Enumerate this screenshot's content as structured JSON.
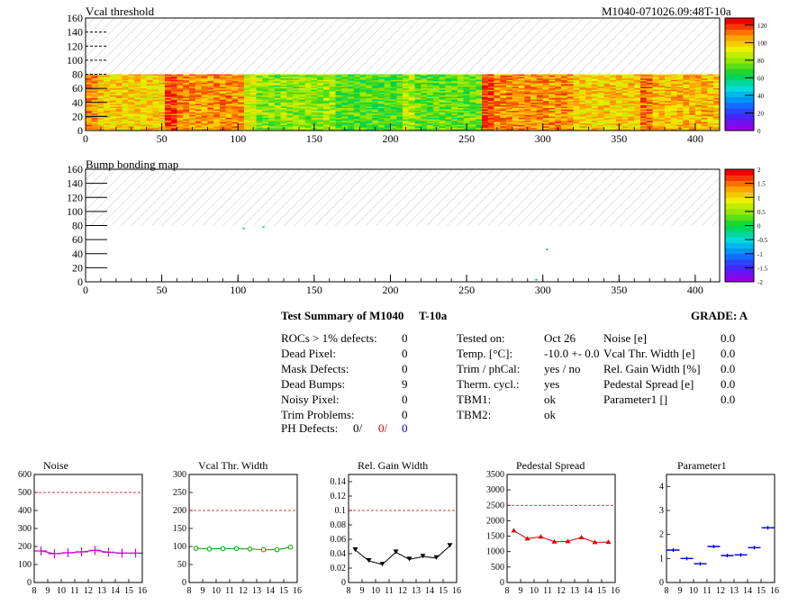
{
  "header": {
    "title": "Vcal threshold",
    "module_id": "M1040-071026.09:48T-10a"
  },
  "chart_data": [
    {
      "type": "heatmap",
      "title": "Vcal threshold",
      "xlim": [
        0,
        416
      ],
      "ylim": [
        0,
        160
      ],
      "x_ticks": [
        "0",
        "50",
        "100",
        "150",
        "200",
        "250",
        "300",
        "350",
        "400"
      ],
      "y_ticks": [
        "0",
        "20",
        "40",
        "60",
        "80",
        "100",
        "120",
        "140",
        "160"
      ],
      "data_rows": [
        0,
        80
      ],
      "hatched_rows": [
        80,
        160
      ],
      "z_ticks": [
        "0",
        "20",
        "40",
        "60",
        "80",
        "100",
        "120"
      ],
      "zlim": [
        0,
        128
      ],
      "roc_columns": [
        {
          "x": [
            0,
            52
          ],
          "level": 100
        },
        {
          "x": [
            52,
            104
          ],
          "level": 110
        },
        {
          "x": [
            104,
            156
          ],
          "level": 80
        },
        {
          "x": [
            156,
            208
          ],
          "level": 72
        },
        {
          "x": [
            208,
            260
          ],
          "level": 74
        },
        {
          "x": [
            260,
            312
          ],
          "level": 110
        },
        {
          "x": [
            312,
            364
          ],
          "level": 100
        },
        {
          "x": [
            364,
            416
          ],
          "level": 104
        }
      ]
    },
    {
      "type": "heatmap",
      "title": "Bump bonding map",
      "xlim": [
        0,
        416
      ],
      "ylim": [
        0,
        160
      ],
      "x_ticks": [
        "0",
        "50",
        "100",
        "150",
        "200",
        "250",
        "300",
        "350",
        "400"
      ],
      "y_ticks": [
        "0",
        "20",
        "40",
        "60",
        "80",
        "100",
        "120",
        "140",
        "160"
      ],
      "hatched_rows": [
        80,
        160
      ],
      "z_ticks": [
        "-2",
        "-1.5",
        "-1",
        "-0.5",
        "0",
        "0.5",
        "1",
        "1.5",
        "2"
      ],
      "zlim": [
        -2,
        2
      ],
      "points": [
        [
          103,
          75
        ],
        [
          116,
          77
        ],
        [
          295,
          2
        ],
        [
          302,
          45
        ]
      ]
    },
    {
      "type": "line",
      "title": "Noise",
      "color": "#d000d0",
      "xlim": [
        8,
        16
      ],
      "ylim": [
        0,
        600
      ],
      "x_ticks": [
        "8",
        "9",
        "10",
        "11",
        "12",
        "13",
        "14",
        "15",
        "16"
      ],
      "y_ticks": [
        "0",
        "100",
        "200",
        "300",
        "400",
        "500",
        "600"
      ],
      "ref_line": 500,
      "marker": "cross",
      "x": [
        8.5,
        9.5,
        10.5,
        11.5,
        12.5,
        13.5,
        14.5,
        15.5
      ],
      "values": [
        175,
        160,
        165,
        170,
        178,
        168,
        163,
        163
      ]
    },
    {
      "type": "line",
      "title": "Vcal Thr. Width",
      "color": "#00a000",
      "xlim": [
        8,
        16
      ],
      "ylim": [
        0,
        300
      ],
      "x_ticks": [
        "8",
        "9",
        "10",
        "11",
        "12",
        "13",
        "14",
        "15",
        "16"
      ],
      "y_ticks": [
        "0",
        "50",
        "100",
        "150",
        "200",
        "250",
        "300"
      ],
      "ref_line": 200,
      "marker": "circle",
      "x": [
        8.5,
        9.5,
        10.5,
        11.5,
        12.5,
        13.5,
        14.5,
        15.5
      ],
      "values": [
        95,
        93,
        94,
        94,
        93,
        91,
        91,
        98
      ]
    },
    {
      "type": "line",
      "title": "Rel. Gain Width",
      "color": "#000000",
      "xlim": [
        8,
        16
      ],
      "ylim": [
        0,
        0.15
      ],
      "x_ticks": [
        "8",
        "9",
        "10",
        "11",
        "12",
        "13",
        "14",
        "15",
        "16"
      ],
      "y_ticks": [
        "0",
        "0.02",
        "0.04",
        "0.06",
        "0.08",
        "0.1",
        "0.12",
        "0.14"
      ],
      "ref_line": 0.1,
      "marker": "triangle-down",
      "x": [
        8.5,
        9.5,
        10.5,
        11.5,
        12.5,
        13.5,
        14.5,
        15.5
      ],
      "values": [
        0.045,
        0.03,
        0.025,
        0.042,
        0.032,
        0.036,
        0.034,
        0.051
      ]
    },
    {
      "type": "line",
      "title": "Pedestal Spread",
      "color": "#e00000",
      "xlim": [
        8,
        16
      ],
      "ylim": [
        0,
        3500
      ],
      "x_ticks": [
        "8",
        "9",
        "10",
        "11",
        "12",
        "13",
        "14",
        "15",
        "16"
      ],
      "y_ticks": [
        "0",
        "500",
        "1000",
        "1500",
        "2000",
        "2500",
        "3000",
        "3500"
      ],
      "ref_line": 2500,
      "marker": "triangle-up",
      "x": [
        8.5,
        9.5,
        10.5,
        11.5,
        12.5,
        13.5,
        14.5,
        15.5
      ],
      "values": [
        1680,
        1420,
        1480,
        1320,
        1330,
        1460,
        1300,
        1310
      ]
    },
    {
      "type": "scatter",
      "title": "Parameter1",
      "color": "#0000d0",
      "xlim": [
        8,
        16
      ],
      "ylim": [
        0,
        4.5
      ],
      "x_ticks": [
        "8",
        "9",
        "10",
        "11",
        "12",
        "13",
        "14",
        "15",
        "16"
      ],
      "y_ticks": [
        "0",
        "1",
        "2",
        "3",
        "4"
      ],
      "marker": "hbar",
      "x": [
        8.5,
        9.5,
        10.5,
        11.5,
        12.5,
        13.5,
        14.5,
        15.5
      ],
      "values": [
        1.35,
        1.0,
        0.78,
        1.5,
        1.12,
        1.15,
        1.45,
        2.28
      ]
    }
  ],
  "summary": {
    "title": "Test Summary of M1040",
    "subtitle": "T-10a",
    "grade": "GRADE:  A",
    "left": [
      {
        "label": "ROCs > 1% defects:",
        "value": "0"
      },
      {
        "label": "Dead Pixel:",
        "value": "0"
      },
      {
        "label": "Mask Defects:",
        "value": "0"
      },
      {
        "label": "Dead Bumps:",
        "value": "9"
      },
      {
        "label": "Noisy Pixel:",
        "value": "0"
      },
      {
        "label": "Trim Problems:",
        "value": "0"
      }
    ],
    "ph_label": "PH Defects:",
    "ph_values": [
      "0/",
      "0/",
      "0"
    ],
    "middle": [
      {
        "label": "Tested on:",
        "value": "Oct 26"
      },
      {
        "label": "Temp. [°C]:",
        "value": "-10.0 +- 0.0"
      },
      {
        "label": "Trim / phCal:",
        "value": "yes / no"
      },
      {
        "label": "Therm. cycl.:",
        "value": "yes"
      },
      {
        "label": "TBM1:",
        "value": "ok"
      },
      {
        "label": "TBM2:",
        "value": "ok"
      }
    ],
    "right": [
      {
        "label": "Noise [e]",
        "value": "0.0"
      },
      {
        "label": "Vcal Thr. Width [e]",
        "value": "0.0"
      },
      {
        "label": "Rel. Gain Width [%]",
        "value": "0.0"
      },
      {
        "label": "Pedestal Spread [e]",
        "value": "0.0"
      },
      {
        "label": "Parameter1 []",
        "value": "0.0"
      }
    ]
  }
}
